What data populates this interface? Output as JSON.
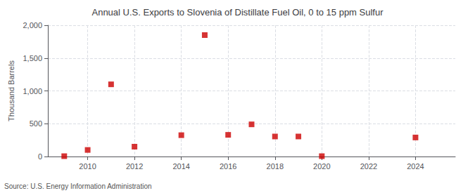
{
  "chart_data": {
    "type": "scatter",
    "title": "Annual U.S. Exports to Slovenia of Distillate Fuel Oil, 0 to 15 ppm Sulfur",
    "ylabel": "Thousand Barrels",
    "source": "Source: U.S. Energy Information Administration",
    "x": [
      2009,
      2010,
      2011,
      2012,
      2014,
      2015,
      2016,
      2017,
      2018,
      2019,
      2020,
      2024
    ],
    "values": [
      5,
      100,
      1100,
      150,
      325,
      1850,
      330,
      490,
      305,
      305,
      5,
      290
    ],
    "color": "#cc0000",
    "marker": "square",
    "xlim": [
      2008.3,
      2025.7
    ],
    "xticks": [
      2010,
      2012,
      2014,
      2016,
      2018,
      2020,
      2022,
      2024
    ],
    "ylim": [
      0,
      2000
    ],
    "yticks": [
      0,
      500,
      {
        "value": 1000,
        "label": "1,000"
      },
      {
        "value": 1500,
        "label": "1,500"
      },
      {
        "value": 2000,
        "label": "2,000"
      }
    ],
    "grid": true
  }
}
